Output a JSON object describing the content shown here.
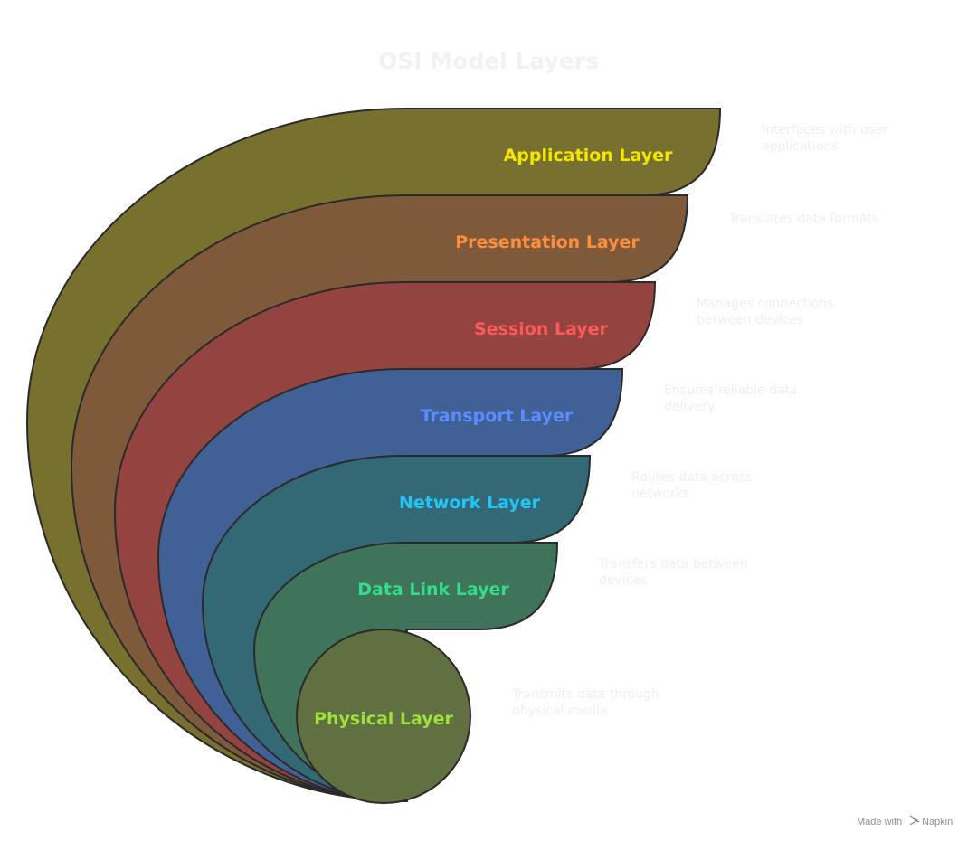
{
  "title": "OSI Model Layers",
  "layers": [
    {
      "label": "Application Layer",
      "description_lines": [
        "Interfaces with user",
        "applications"
      ],
      "fill": "#78702f",
      "label_color": "#f3e600"
    },
    {
      "label": "Presentation Layer",
      "description_lines": [
        "Translates data formats"
      ],
      "fill": "#7e5a3a",
      "label_color": "#ff8e3c"
    },
    {
      "label": "Session Layer",
      "description_lines": [
        "Manages connections",
        "between devices"
      ],
      "fill": "#934340",
      "label_color": "#ff5a5a"
    },
    {
      "label": "Transport Layer",
      "description_lines": [
        "Ensures reliable data",
        "delivery"
      ],
      "fill": "#416196",
      "label_color": "#5b8cff"
    },
    {
      "label": "Network Layer",
      "description_lines": [
        "Routes data across",
        "networks"
      ],
      "fill": "#336875",
      "label_color": "#23c4f8"
    },
    {
      "label": "Data Link Layer",
      "description_lines": [
        "Transfers data between",
        "devices"
      ],
      "fill": "#40745a",
      "label_color": "#33dd8e"
    },
    {
      "label": "Physical Layer",
      "description_lines": [
        "Transmits data through",
        "physical media"
      ],
      "fill": "#617040",
      "label_color": "#9ee23a"
    }
  ],
  "footer": {
    "made_with": "Made with",
    "brand": "Napkin"
  },
  "colors": {
    "title": "#f2f2f2",
    "description": "#f0f0f0",
    "footer": "#8f8f8f",
    "outline": "#2a2a2a"
  }
}
